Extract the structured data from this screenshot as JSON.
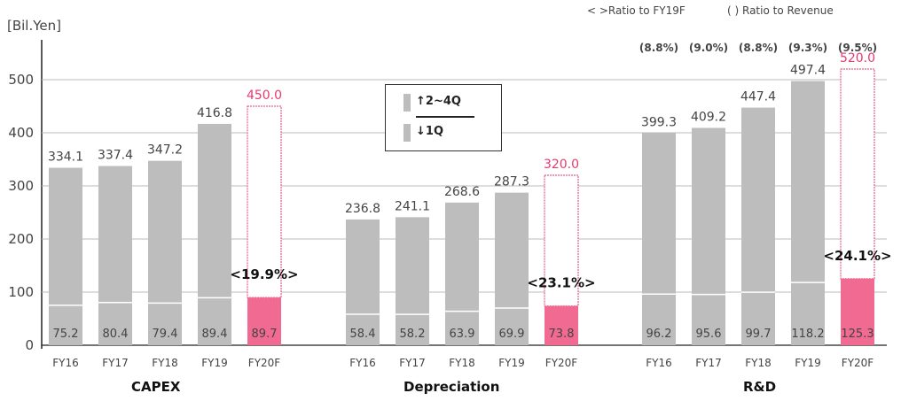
{
  "unit_label": "[Bil.Yen]",
  "legend_top": {
    "ratio_fy19f": "< >Ratio to FY19F",
    "ratio_revenue": "(   ) Ratio to Revenue"
  },
  "quarter_box": {
    "top_label": "↑2~4Q",
    "bottom_label": "↓1Q"
  },
  "colors": {
    "gray": "#bdbdbd",
    "pink": "#f06a91",
    "pink_text": "#e8396e",
    "pink_outline": "#e8396e",
    "grid": "#bbbbbb"
  },
  "chart_data": {
    "type": "bar",
    "stacked": true,
    "ylabel": "[Bil.Yen]",
    "ylim": [
      0,
      580
    ],
    "yticks": [
      0,
      100,
      200,
      300,
      400,
      500
    ],
    "grid": true,
    "groups": [
      {
        "name": "CAPEX",
        "categories": [
          "FY16",
          "FY17",
          "FY18",
          "FY19",
          "FY20F"
        ],
        "totals": [
          334.1,
          337.4,
          347.2,
          416.8,
          450.0
        ],
        "total_labels": [
          "334.1",
          "337.4",
          "347.2",
          "416.8",
          "450.0"
        ],
        "first_quarter": [
          75.2,
          80.4,
          79.4,
          89.4,
          89.7
        ],
        "first_quarter_labels": [
          "75.2",
          "80.4",
          "79.4",
          "89.4",
          "89.7"
        ],
        "forecast_index": 4,
        "ratio_fy19f": "<19.9%>",
        "ratio_revenue": []
      },
      {
        "name": "Depreciation",
        "categories": [
          "FY16",
          "FY17",
          "FY18",
          "FY19",
          "FY20F"
        ],
        "totals": [
          236.8,
          241.1,
          268.6,
          287.3,
          320.0
        ],
        "total_labels": [
          "236.8",
          "241.1",
          "268.6",
          "287.3",
          "320.0"
        ],
        "first_quarter": [
          58.4,
          58.2,
          63.9,
          69.9,
          73.8
        ],
        "first_quarter_labels": [
          "58.4",
          "58.2",
          "63.9",
          "69.9",
          "73.8"
        ],
        "forecast_index": 4,
        "ratio_fy19f": "<23.1%>",
        "ratio_revenue": []
      },
      {
        "name": "R&D",
        "categories": [
          "FY16",
          "FY17",
          "FY18",
          "FY19",
          "FY20F"
        ],
        "totals": [
          399.3,
          409.2,
          447.4,
          497.4,
          520.0
        ],
        "total_labels": [
          "399.3",
          "409.2",
          "447.4",
          "497.4",
          "520.0"
        ],
        "first_quarter": [
          96.2,
          95.6,
          99.7,
          118.2,
          125.3
        ],
        "first_quarter_labels": [
          "96.2",
          "95.6",
          "99.7",
          "118.2",
          "125.3"
        ],
        "forecast_index": 4,
        "ratio_fy19f": "<24.1%>",
        "ratio_revenue": [
          "(8.8%)",
          "(9.0%)",
          "(8.8%)",
          "(9.3%)",
          "(9.5%)"
        ]
      }
    ]
  }
}
